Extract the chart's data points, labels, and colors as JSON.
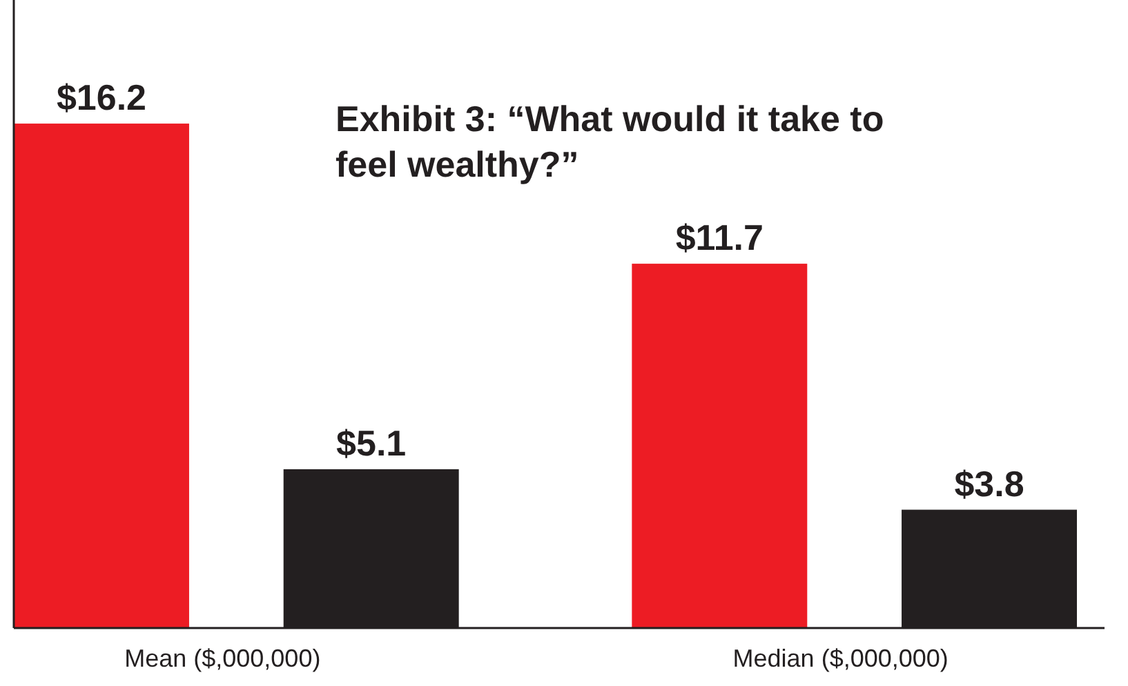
{
  "chart_data": {
    "type": "bar",
    "title": "Exhibit 3: “What would it take to feel wealthy?”",
    "categories": [
      "Mean ($,000,000)",
      "Median ($,000,000)"
    ],
    "series": [
      {
        "color": "#ed1c24",
        "values": [
          16.2,
          11.7
        ],
        "value_labels": [
          "$16.2",
          "$11.7"
        ]
      },
      {
        "color": "#231f20",
        "values": [
          5.1,
          3.8
        ],
        "value_labels": [
          "$5.1",
          "$3.8"
        ]
      }
    ]
  }
}
